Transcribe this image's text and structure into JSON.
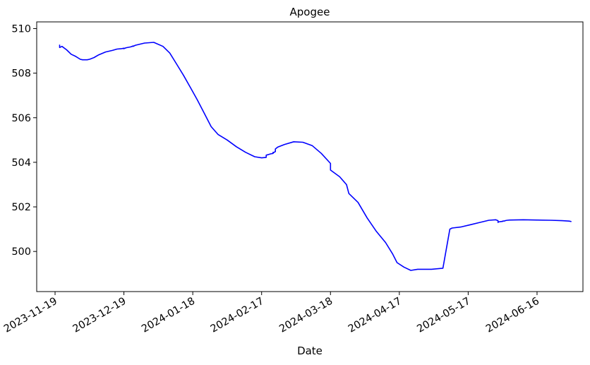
{
  "chart_data": {
    "type": "line",
    "title": "Apogee",
    "xlabel": "Date",
    "ylabel": "",
    "x_ticks": [
      "2023-11-19",
      "2023-12-19",
      "2024-01-18",
      "2024-02-17",
      "2024-03-18",
      "2024-04-17",
      "2024-05-17",
      "2024-06-16"
    ],
    "y_ticks": [
      500,
      502,
      504,
      506,
      508,
      510
    ],
    "xlim": [
      "2023-11-11",
      "2024-07-06"
    ],
    "ylim": [
      498.2,
      510.3
    ],
    "grid": false,
    "legend": "none",
    "line_color": "#0000ff",
    "series": [
      {
        "x": [
          "2023-11-21",
          "2023-11-21",
          "2023-11-22",
          "2023-11-24",
          "2023-11-26",
          "2023-11-28",
          "2023-11-30",
          "2023-12-01",
          "2023-12-02",
          "2023-12-03",
          "2023-12-04",
          "2023-12-06",
          "2023-12-08",
          "2023-12-11",
          "2023-12-14",
          "2023-12-16",
          "2023-12-18",
          "2023-12-19",
          "2023-12-19",
          "2023-12-20",
          "2023-12-22",
          "2023-12-23",
          "2023-12-23",
          "2023-12-24",
          "2023-12-28",
          "2024-01-01",
          "2024-01-05",
          "2024-01-08",
          "2024-01-11",
          "2024-01-14",
          "2024-01-17",
          "2024-01-20",
          "2024-01-23",
          "2024-01-26",
          "2024-01-29",
          "2024-02-02",
          "2024-02-06",
          "2024-02-10",
          "2024-02-14",
          "2024-02-17",
          "2024-02-19",
          "2024-02-19",
          "2024-02-19",
          "2024-02-21",
          "2024-02-22",
          "2024-02-22",
          "2024-02-22",
          "2024-02-23",
          "2024-02-23",
          "2024-02-23",
          "2024-02-24",
          "2024-02-27",
          "2024-03-02",
          "2024-03-06",
          "2024-03-10",
          "2024-03-14",
          "2024-03-18",
          "2024-03-18",
          "2024-03-22",
          "2024-03-25",
          "2024-03-26",
          "2024-03-30",
          "2024-04-03",
          "2024-04-07",
          "2024-04-11",
          "2024-04-14",
          "2024-04-16",
          "2024-04-19",
          "2024-04-22",
          "2024-04-25",
          "2024-05-01",
          "2024-05-06",
          "2024-05-09",
          "2024-05-10",
          "2024-05-14",
          "2024-05-18",
          "2024-05-22",
          "2024-05-26",
          "2024-05-29",
          "2024-05-30",
          "2024-05-30",
          "2024-05-30",
          "2024-05-30",
          "2024-05-31",
          "2024-06-01",
          "2024-06-01",
          "2024-06-02",
          "2024-06-02",
          "2024-06-03",
          "2024-06-04",
          "2024-06-10",
          "2024-06-16",
          "2024-06-22",
          "2024-06-27",
          "2024-06-30",
          "2024-07-01"
        ],
        "y": [
          509.28,
          509.15,
          509.2,
          509.05,
          508.85,
          508.75,
          508.62,
          508.6,
          508.6,
          508.6,
          508.62,
          508.7,
          508.82,
          508.95,
          509.02,
          509.08,
          509.1,
          509.12,
          509.1,
          509.14,
          509.18,
          509.22,
          509.2,
          509.25,
          509.35,
          509.38,
          509.2,
          508.9,
          508.4,
          507.9,
          507.35,
          506.8,
          506.2,
          505.6,
          505.25,
          505.0,
          504.7,
          504.45,
          504.25,
          504.2,
          504.22,
          504.28,
          504.32,
          504.38,
          504.4,
          504.45,
          504.42,
          504.48,
          504.52,
          504.6,
          504.68,
          504.8,
          504.92,
          504.9,
          504.75,
          504.4,
          503.95,
          503.65,
          503.35,
          503.0,
          502.6,
          502.2,
          501.5,
          500.9,
          500.4,
          499.9,
          499.5,
          499.3,
          499.15,
          499.2,
          499.2,
          499.25,
          501.0,
          501.05,
          501.1,
          501.2,
          501.3,
          501.4,
          501.42,
          501.38,
          501.32,
          501.3,
          501.32,
          501.34,
          501.35,
          501.36,
          501.37,
          501.38,
          501.4,
          501.41,
          501.42,
          501.41,
          501.4,
          501.38,
          501.36,
          501.34
        ]
      }
    ]
  }
}
